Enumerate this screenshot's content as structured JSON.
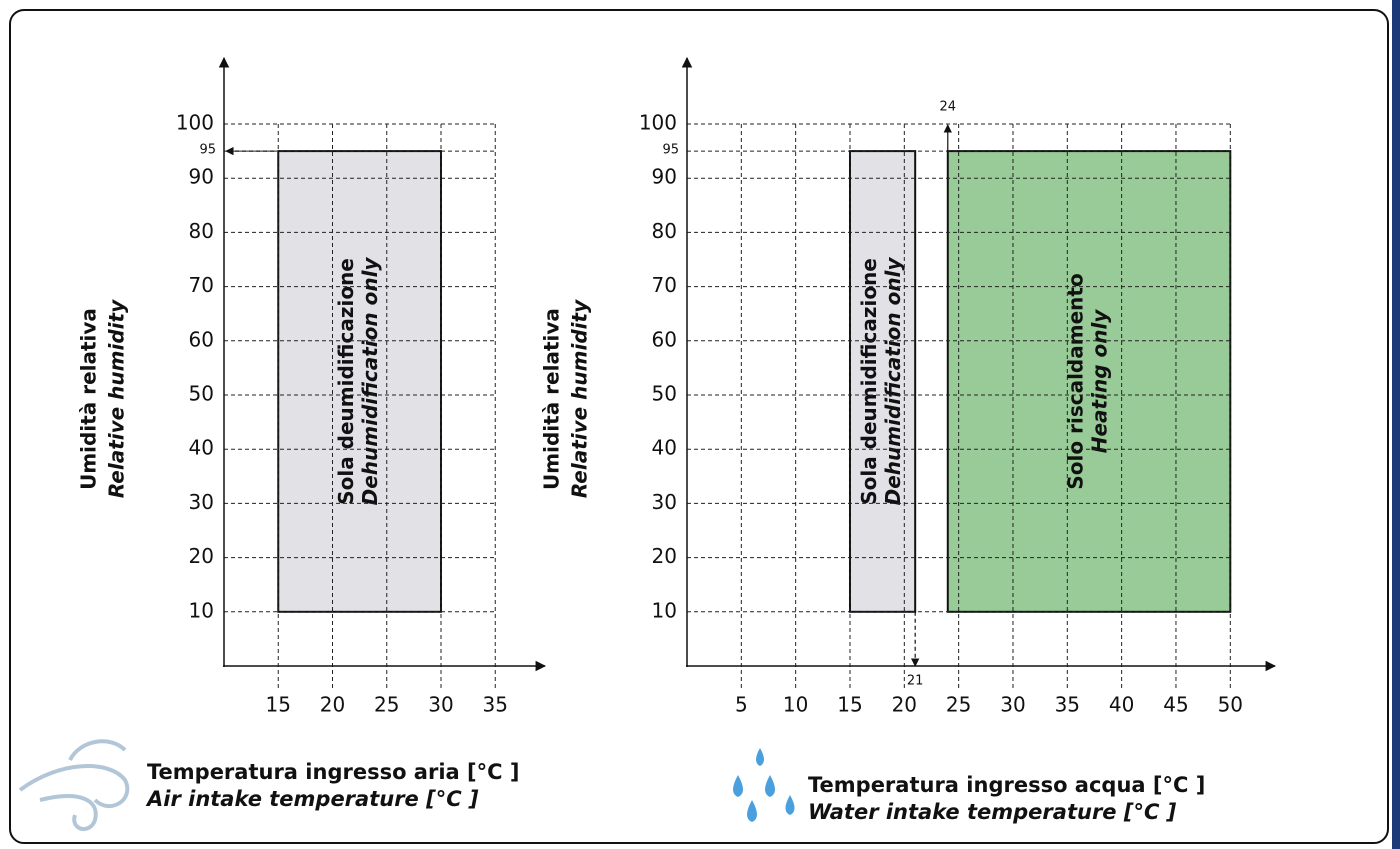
{
  "chart_data": [
    {
      "type": "range",
      "ylabel": [
        "Umidità relativa",
        "Relative humidity"
      ],
      "xlabel": [
        "Temperatura ingresso aria [°C ]",
        "Air intake temperature [°C ]"
      ],
      "xlim": [
        10,
        35
      ],
      "ylim": [
        0,
        100
      ],
      "xticks": [
        15,
        20,
        25,
        30,
        35
      ],
      "yticks": [
        10,
        20,
        30,
        40,
        50,
        60,
        70,
        80,
        90,
        100
      ],
      "grid": true,
      "regions": [
        {
          "label": [
            "Sola deumidificazione",
            "Dehumidification only"
          ],
          "x": [
            15,
            30
          ],
          "y": [
            10,
            95
          ],
          "color": "#e2e1e6"
        }
      ],
      "annotations": [
        {
          "axis": "y",
          "value": 95,
          "arrow": true
        }
      ]
    },
    {
      "type": "range",
      "ylabel": [
        "Umidità relativa",
        "Relative humidity"
      ],
      "xlabel": [
        "Temperatura ingresso acqua  [°C ]",
        "Water intake temperature  [°C ]"
      ],
      "xlim": [
        0,
        50
      ],
      "ylim": [
        0,
        100
      ],
      "xticks": [
        5,
        10,
        15,
        20,
        25,
        30,
        35,
        40,
        45,
        50
      ],
      "yticks": [
        10,
        20,
        30,
        40,
        50,
        60,
        70,
        80,
        90,
        100
      ],
      "grid": true,
      "regions": [
        {
          "label": [
            "Sola deumidificazione",
            "Dehumidification only"
          ],
          "x": [
            15,
            21
          ],
          "y": [
            10,
            95
          ],
          "color": "#e2e1e6"
        },
        {
          "label": [
            "Solo riscaldamento",
            "Heating only"
          ],
          "x": [
            24,
            50
          ],
          "y": [
            10,
            95
          ],
          "color": "#98cb98"
        }
      ],
      "annotations": [
        {
          "axis": "y",
          "value": 95,
          "arrow": false
        },
        {
          "axis": "x",
          "value": 24,
          "side": "top"
        },
        {
          "axis": "x",
          "value": 21,
          "side": "bottom"
        }
      ]
    }
  ]
}
